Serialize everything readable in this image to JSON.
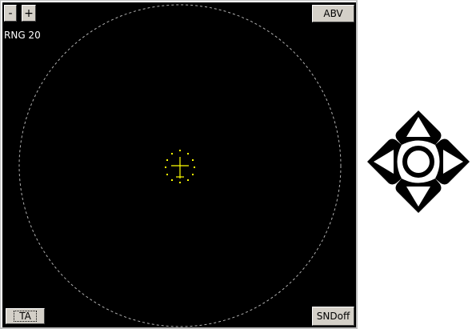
{
  "radar": {
    "zoom_out_label": "-",
    "zoom_in_label": "+",
    "range_label": "RNG 20",
    "altitude_mode_label": "ABV",
    "ta_label": "TA",
    "sound_label": "SNDoff",
    "background_color": "#000000",
    "range_ring_color": "#b0b0b0",
    "own_aircraft_color": "#ffff00"
  },
  "nav_pad": {
    "icon": "directional-pad-icon"
  }
}
